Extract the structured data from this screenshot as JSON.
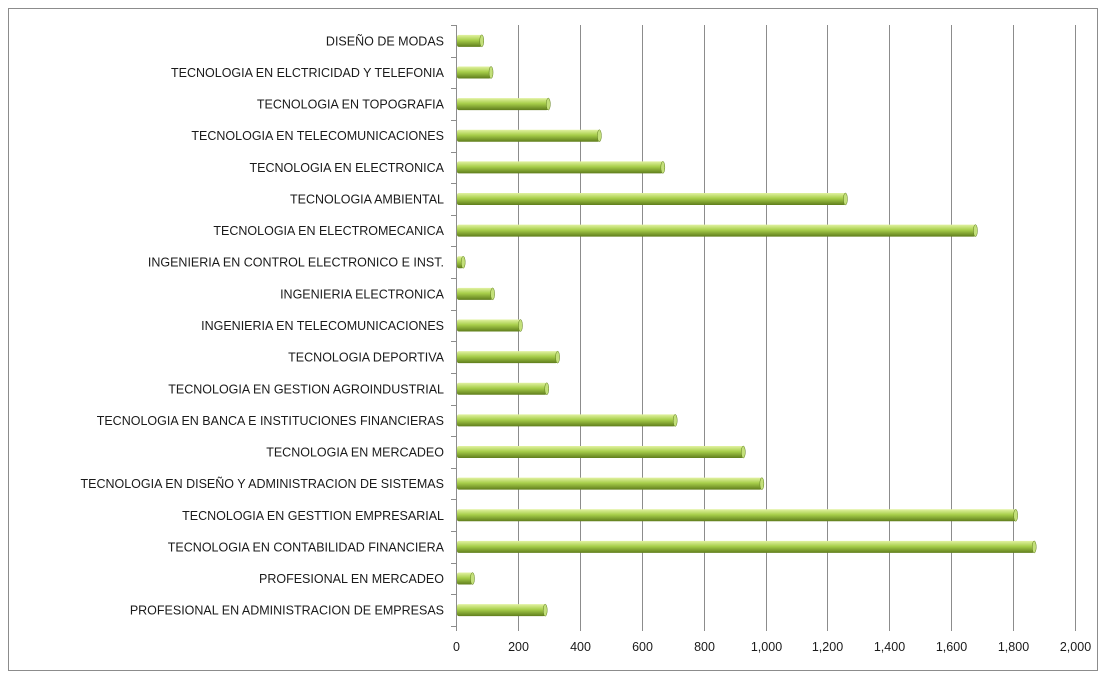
{
  "chart_data": {
    "type": "bar",
    "orientation": "horizontal",
    "categories": [
      "DISEÑO DE MODAS",
      "TECNOLOGIA EN  ELCTRICIDAD  Y TELEFONIA",
      "TECNOLOGIA EN  TOPOGRAFIA",
      "TECNOLOGIA EN  TELECOMUNICACIONES",
      "TECNOLOGIA EN  ELECTRONICA",
      "TECNOLOGIA AMBIENTAL",
      "TECNOLOGIA EN  ELECTROMECANICA",
      "INGENIERIA  EN CONTROL ELECTRONICO  E INST.",
      "INGENIERIA  ELECTRONICA",
      "INGENIERIA  EN TELECOMUNICACIONES",
      "TECNOLOGIA DEPORTIVA",
      "TECNOLOGIA EN  GESTION  AGROINDUSTRIAL",
      "TECNOLOGIA EN   BANCA E INSTITUCIONES  FINANCIERAS",
      "TECNOLOGIA EN  MERCADEO",
      "TECNOLOGIA EN  DISEÑO Y ADMINISTRACION  DE SISTEMAS",
      "TECNOLOGIA EN  GESTTION  EMPRESARIAL",
      "TECNOLOGIA EN  CONTABILIDAD FINANCIERA",
      "PROFESIONAL EN  MERCADEO",
      "PROFESIONAL EN ADMINISTRACION  DE EMPRESAS"
    ],
    "values": [
      80,
      110,
      295,
      460,
      665,
      1255,
      1675,
      20,
      115,
      205,
      325,
      290,
      705,
      925,
      985,
      1805,
      1865,
      50,
      285
    ],
    "xlim": [
      0,
      2000
    ],
    "xticks": [
      0,
      200,
      400,
      600,
      800,
      1000,
      1200,
      1400,
      1600,
      1800,
      2000
    ],
    "xtick_labels": [
      "0",
      "200",
      "400",
      "600",
      "800",
      "1,000",
      "1,200",
      "1,400",
      "1,600",
      "1,800",
      "2,000"
    ],
    "title": "",
    "xlabel": "",
    "ylabel": "",
    "grid": "vertical",
    "legend": "none",
    "colors": {
      "bar_top": "#e2f2a2",
      "bar_mid": "#a7ce4a",
      "bar_bottom": "#5f7d1c",
      "bar_end": "#c3e07a",
      "gridline": "#8c8c8c",
      "axis": "#8c8c8c"
    }
  }
}
